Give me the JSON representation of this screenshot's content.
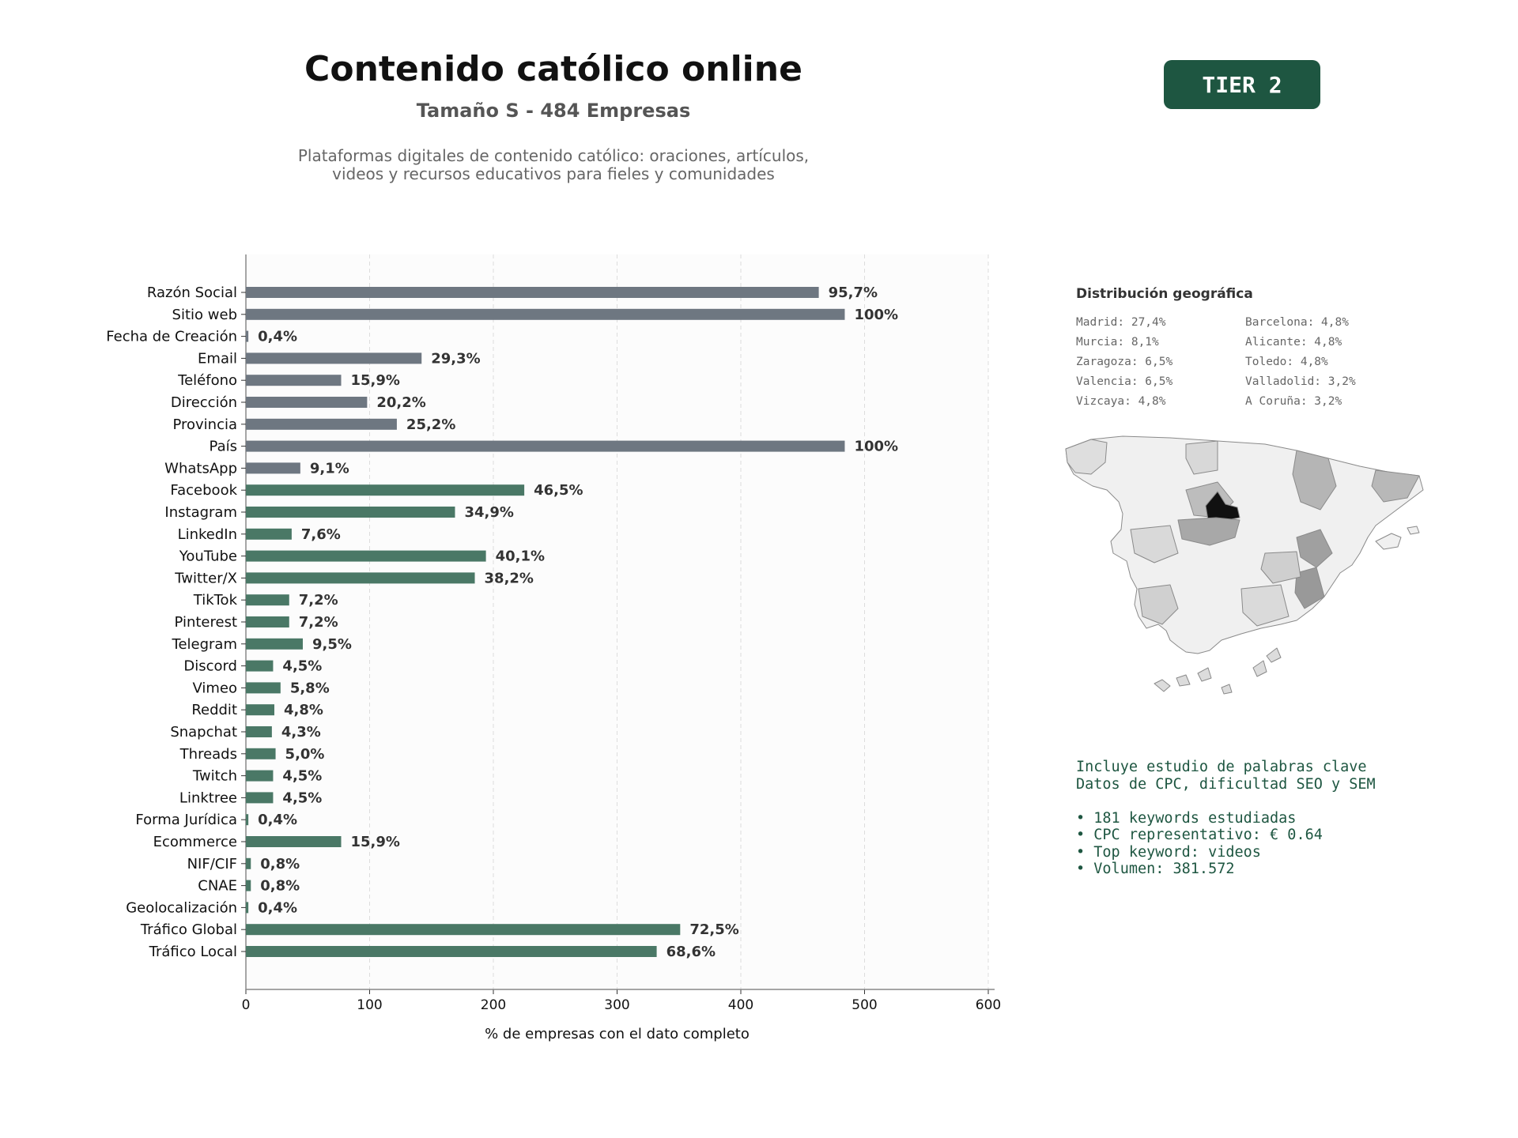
{
  "header": {
    "title": "Contenido católico online",
    "subtitle": "Tamaño S - 484 Empresas",
    "description_lines": [
      "Plataformas digitales de contenido católico: oraciones, artículos,",
      "videos y recursos educativos para fieles y comunidades"
    ],
    "badge": "TIER 2"
  },
  "chart_data": {
    "type": "bar",
    "orientation": "horizontal",
    "xlabel": "% de empresas con el dato completo",
    "xlim": [
      0,
      600
    ],
    "xticks": [
      0,
      100,
      200,
      300,
      400,
      500,
      600
    ],
    "grid": "vertical dashed",
    "categories": [
      "Razón Social",
      "Sitio web",
      "Fecha de Creación",
      "Email",
      "Teléfono",
      "Dirección",
      "Provincia",
      "País",
      "WhatsApp",
      "Facebook",
      "Instagram",
      "LinkedIn",
      "YouTube",
      "Twitter/X",
      "TikTok",
      "Pinterest",
      "Telegram",
      "Discord",
      "Vimeo",
      "Reddit",
      "Snapchat",
      "Threads",
      "Twitch",
      "Linktree",
      "Forma Jurídica",
      "Ecommerce",
      "NIF/CIF",
      "CNAE",
      "Geolocalización",
      "Tráfico Global",
      "Tráfico Local"
    ],
    "values": [
      463,
      484,
      2,
      142,
      77,
      98,
      122,
      484,
      44,
      225,
      169,
      37,
      194,
      185,
      35,
      35,
      46,
      22,
      28,
      23,
      21,
      24,
      22,
      22,
      2,
      77,
      4,
      4,
      2,
      351,
      332
    ],
    "labels": [
      "95,7%",
      "100%",
      "0,4%",
      "29,3%",
      "15,9%",
      "20,2%",
      "25,2%",
      "100%",
      "9,1%",
      "46,5%",
      "34,9%",
      "7,6%",
      "40,1%",
      "38,2%",
      "7,2%",
      "7,2%",
      "9,5%",
      "4,5%",
      "5,8%",
      "4,8%",
      "4,3%",
      "5,0%",
      "4,5%",
      "4,5%",
      "0,4%",
      "15,9%",
      "0,8%",
      "0,8%",
      "0,4%",
      "72,5%",
      "68,6%"
    ],
    "colors": [
      "#6e7781",
      "#6e7781",
      "#6e7781",
      "#6e7781",
      "#6e7781",
      "#6e7781",
      "#6e7781",
      "#6e7781",
      "#6e7781",
      "#4a7866",
      "#4a7866",
      "#4a7866",
      "#4a7866",
      "#4a7866",
      "#4a7866",
      "#4a7866",
      "#4a7866",
      "#4a7866",
      "#4a7866",
      "#4a7866",
      "#4a7866",
      "#4a7866",
      "#4a7866",
      "#4a7866",
      "#4a7866",
      "#4a7866",
      "#4a7866",
      "#4a7866",
      "#4a7866",
      "#4a7866",
      "#4a7866"
    ]
  },
  "geo": {
    "title": "Distribución geográfica",
    "items": [
      "Madrid: 27,4%",
      "Barcelona: 4,8%",
      "Murcia: 8,1%",
      "Alicante: 4,8%",
      "Zaragoza: 6,5%",
      "Toledo: 4,8%",
      "Valencia: 6,5%",
      "Valladolid: 3,2%",
      "Vizcaya: 4,8%",
      "A Coruña: 3,2%"
    ]
  },
  "keywords": {
    "lines": [
      "Incluye estudio de palabras clave",
      "Datos de CPC, dificultad SEO y SEM",
      "",
      "• 181 keywords estudiadas",
      "• CPC representativo: € 0.64",
      "• Top keyword: videos",
      "• Volumen: 381.572"
    ]
  }
}
